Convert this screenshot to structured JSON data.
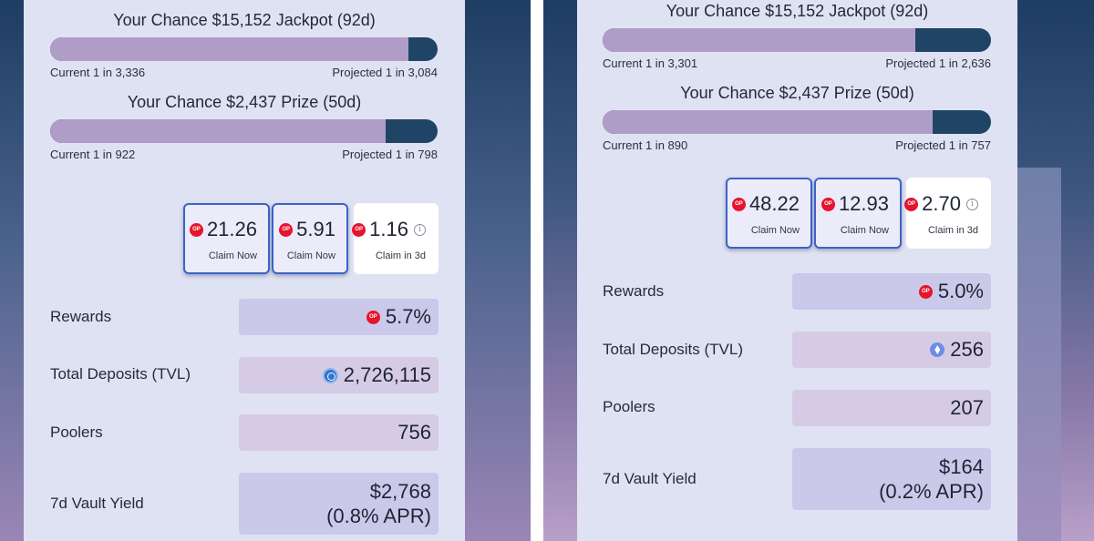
{
  "panels": {
    "left": {
      "jackpot": {
        "title": "Your Chance $15,152 Jackpot (92d)",
        "current": "Current 1 in 3,336",
        "projected": "Projected 1 in 3,084",
        "progress_pct": 92.5
      },
      "prize": {
        "title": "Your Chance $2,437 Prize (50d)",
        "current": "Current 1 in 922",
        "projected": "Projected 1 in 798",
        "progress_pct": 86.5
      },
      "claims": [
        {
          "value": "21.26",
          "sub": "Claim Now",
          "token": "op-token",
          "style": "highlight"
        },
        {
          "value": "5.91",
          "sub": "Claim Now",
          "token": "op-token",
          "style": "highlight"
        },
        {
          "value": "1.16",
          "sub": "Claim in  3d",
          "token": "op-token",
          "style": "plain",
          "info": "i"
        }
      ],
      "stats": {
        "rewards": {
          "label": "Rewards",
          "value": "5.7%",
          "icon": "op-token"
        },
        "tvl": {
          "label": "Total Deposits (TVL)",
          "value": "2,726,115",
          "icon": "usdc-icon"
        },
        "poolers": {
          "label": "Poolers",
          "value": "756"
        },
        "yield": {
          "label": "7d Vault Yield",
          "value": "$2,768",
          "apr": "(0.8% APR)"
        }
      }
    },
    "right": {
      "jackpot": {
        "title": "Your Chance $15,152 Jackpot (92d)",
        "current": "Current 1 in 3,301",
        "projected": "Projected 1 in 2,636",
        "progress_pct": 80.5
      },
      "prize": {
        "title": "Your Chance $2,437 Prize (50d)",
        "current": "Current 1 in 890",
        "projected": "Projected 1 in 757",
        "progress_pct": 85
      },
      "claims": [
        {
          "value": "48.22",
          "sub": "Claim Now",
          "token": "op-token",
          "style": "highlight"
        },
        {
          "value": "12.93",
          "sub": "Claim Now",
          "token": "op-token",
          "style": "highlight"
        },
        {
          "value": "2.70",
          "sub": "Claim in  3d",
          "token": "op-token",
          "style": "plain",
          "info": "i"
        }
      ],
      "stats": {
        "rewards": {
          "label": "Rewards",
          "value": "5.0%",
          "icon": "op-token"
        },
        "tvl": {
          "label": "Total Deposits (TVL)",
          "value": "256",
          "icon": "eth-icon"
        },
        "poolers": {
          "label": "Poolers",
          "value": "207"
        },
        "yield": {
          "label": "7d Vault Yield",
          "value": "$164",
          "apr": "(0.2% APR)"
        }
      }
    }
  },
  "colors": {
    "bar_track": "#1f4466",
    "bar_fill": "#b09dc7",
    "card_bg": "#dfe2f2",
    "claim_border": "#3c63c8",
    "op_red": "#e8132d"
  }
}
